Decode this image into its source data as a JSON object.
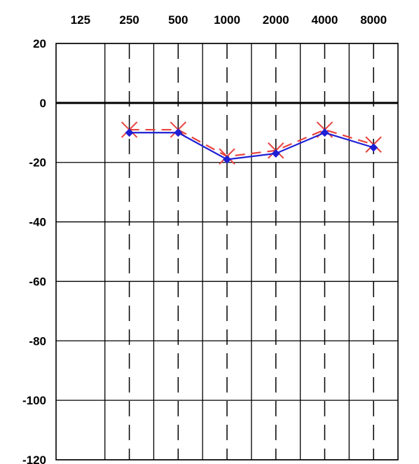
{
  "chart_data": {
    "type": "line",
    "x_categories": [
      "125",
      "250",
      "500",
      "1000",
      "2000",
      "4000",
      "8000"
    ],
    "y_ticks": [
      20,
      0,
      -20,
      -40,
      -60,
      -80,
      -100,
      -120
    ],
    "ylim": [
      -120,
      20
    ],
    "grid": true,
    "x_axis_position": "top",
    "series": [
      {
        "marker": "x",
        "line_style": "dashed",
        "color": "#e8433f",
        "values": [
          null,
          -9,
          -9,
          -18,
          -16,
          -9,
          -14
        ]
      },
      {
        "marker": "diamond",
        "line_style": "solid",
        "color": "#1f1fd6",
        "values": [
          null,
          -10,
          -10,
          -19,
          -17,
          -10,
          -15
        ]
      }
    ]
  }
}
